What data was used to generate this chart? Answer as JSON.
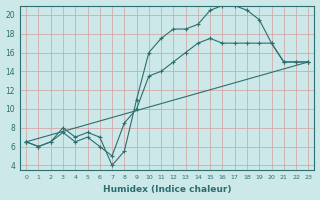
{
  "xlabel": "Humidex (Indice chaleur)",
  "bg_color": "#cce8e8",
  "line_color": "#2d6e6e",
  "grid_color": "#d4a0a0",
  "xlim": [
    -0.5,
    23.5
  ],
  "ylim": [
    3.5,
    21
  ],
  "yticks": [
    4,
    6,
    8,
    10,
    12,
    14,
    16,
    18,
    20
  ],
  "xticks": [
    0,
    1,
    2,
    3,
    4,
    5,
    6,
    7,
    8,
    9,
    10,
    11,
    12,
    13,
    14,
    15,
    16,
    17,
    18,
    19,
    20,
    21,
    22,
    23
  ],
  "line1_x": [
    0,
    1,
    2,
    3,
    4,
    5,
    6,
    7,
    8,
    9,
    10,
    11,
    12,
    13,
    14,
    15,
    16,
    17,
    18,
    19,
    20,
    21,
    22,
    23
  ],
  "line1_y": [
    6.5,
    6,
    6.5,
    8,
    7,
    7.5,
    7,
    4,
    5.5,
    11,
    16,
    17.5,
    18.5,
    18.5,
    19,
    20.5,
    21,
    21,
    20.5,
    19.5,
    17,
    15,
    15,
    15
  ],
  "line2_x": [
    0,
    1,
    2,
    3,
    4,
    5,
    6,
    7,
    8,
    9,
    10,
    11,
    12,
    13,
    14,
    15,
    16,
    17,
    18,
    19,
    20,
    21,
    22,
    23
  ],
  "line2_y": [
    6.5,
    6,
    6.5,
    7.5,
    6.5,
    7,
    6,
    5,
    8.5,
    10,
    13.5,
    14,
    15,
    16,
    17,
    17.5,
    17,
    17,
    17,
    17,
    17,
    15,
    15,
    15
  ],
  "line3_x": [
    0,
    23
  ],
  "line3_y": [
    6.5,
    15
  ]
}
